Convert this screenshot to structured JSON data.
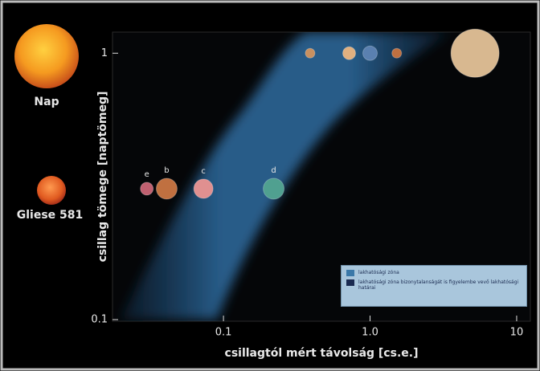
{
  "chart_data": {
    "type": "scatter",
    "x_label": "csillagtól mért távolság [cs.e.]",
    "y_label": "csillag tömege [naptömeg]",
    "annotations": [
      "Nap",
      "Gliese 581"
    ],
    "log_x": true,
    "log_y": true,
    "xlim": [
      0.0175,
      12.4
    ],
    "ylim": [
      0.1,
      1.2
    ],
    "xticks": [
      0.1,
      {
        "value": 1,
        "label": "1.0"
      },
      10
    ],
    "yticks": [
      0.1,
      1
    ],
    "series": [
      {
        "x": [
          0.39,
          0.72,
          1.0,
          1.52,
          5.2
        ],
        "values": [
          1,
          1,
          1,
          1,
          1
        ],
        "colors": [
          "#c89060",
          "#e0b080",
          "#5a80b0",
          "#c07040",
          "#d8b890"
        ]
      },
      {
        "x": [
          0.03,
          0.041,
          0.073,
          0.22
        ],
        "values": [
          0.31,
          0.31,
          0.31,
          0.31
        ],
        "labels": [
          "e",
          "b",
          "c",
          "d"
        ],
        "colors": [
          "#c06070",
          "#c07040",
          "#e09090",
          "#50a090"
        ]
      }
    ],
    "legend": [
      {
        "label": "lakhatósági zóna",
        "color": "#3a78a8"
      },
      {
        "label": "lakhatósági zóna bizonytalanságát is figyelembe vevő lakhatósági határai",
        "color": "#1a2a50"
      }
    ]
  }
}
